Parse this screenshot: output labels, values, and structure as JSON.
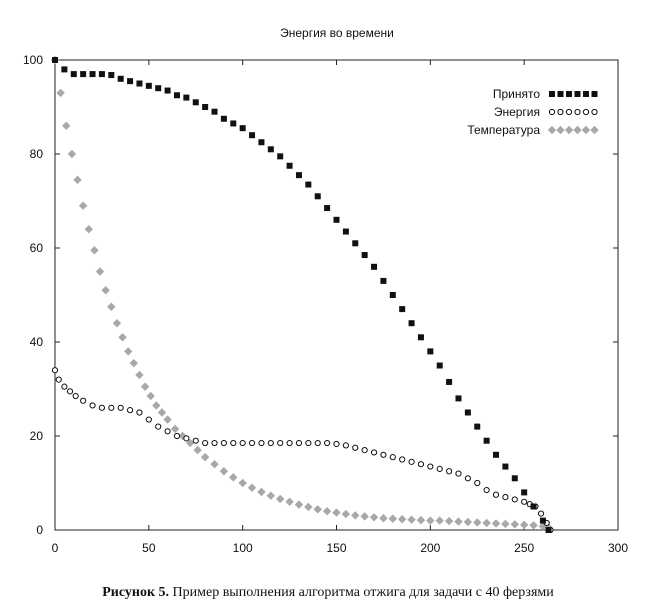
{
  "caption": {
    "label": "Рисунок 5.",
    "text": " Пример выполнения алгоритма отжига для задачи с 40 ферзями"
  },
  "chart_data": {
    "type": "scatter",
    "title": "Энергия во времени",
    "xlabel": "",
    "ylabel": "",
    "xlim": [
      0,
      300
    ],
    "ylim": [
      0,
      100
    ],
    "xticks": [
      0,
      50,
      100,
      150,
      200,
      250,
      300
    ],
    "yticks": [
      0,
      20,
      40,
      60,
      80,
      100
    ],
    "grid": false,
    "legend_position": "top-right",
    "series": [
      {
        "name": "Принято",
        "marker": "square",
        "color": "#111111",
        "x": [
          0,
          5,
          10,
          15,
          20,
          25,
          30,
          35,
          40,
          45,
          50,
          55,
          60,
          65,
          70,
          75,
          80,
          85,
          90,
          95,
          100,
          105,
          110,
          115,
          120,
          125,
          130,
          135,
          140,
          145,
          150,
          155,
          160,
          165,
          170,
          175,
          180,
          185,
          190,
          195,
          200,
          205,
          210,
          215,
          220,
          225,
          230,
          235,
          240,
          245,
          250,
          255,
          260,
          263
        ],
        "y": [
          100,
          98,
          97,
          97,
          97,
          97,
          96.8,
          96,
          95.5,
          95,
          94.5,
          94,
          93.5,
          92.5,
          92,
          91,
          90,
          89,
          87.5,
          86.5,
          85.5,
          84,
          82.5,
          81,
          79.5,
          77.5,
          75.5,
          73.5,
          71,
          68.5,
          66,
          63.5,
          61,
          58.5,
          56,
          53,
          50,
          47,
          44,
          41,
          38,
          35,
          31.5,
          28,
          25,
          22,
          19,
          16,
          13.5,
          11,
          8,
          5,
          2,
          0
        ]
      },
      {
        "name": "Энергия",
        "marker": "circle",
        "color": "#111111",
        "x": [
          0,
          2,
          5,
          8,
          11,
          15,
          20,
          25,
          30,
          35,
          40,
          45,
          50,
          55,
          60,
          65,
          70,
          75,
          80,
          85,
          90,
          95,
          100,
          105,
          110,
          115,
          120,
          125,
          130,
          135,
          140,
          145,
          150,
          155,
          160,
          165,
          170,
          175,
          180,
          185,
          190,
          195,
          200,
          205,
          210,
          215,
          220,
          225,
          230,
          235,
          240,
          245,
          250,
          253,
          256,
          259,
          262,
          264
        ],
        "y": [
          34,
          32,
          30.5,
          29.5,
          28.5,
          27.5,
          26.5,
          26,
          26,
          26,
          25.5,
          25,
          23.5,
          22,
          21,
          20,
          19.5,
          19,
          18.5,
          18.5,
          18.5,
          18.5,
          18.5,
          18.5,
          18.5,
          18.5,
          18.5,
          18.5,
          18.5,
          18.5,
          18.5,
          18.5,
          18.3,
          18,
          17.5,
          17,
          16.5,
          16,
          15.5,
          15,
          14.5,
          14,
          13.5,
          13,
          12.5,
          12,
          11,
          10,
          8.5,
          7.5,
          7,
          6.5,
          6,
          5.5,
          5,
          3.5,
          1.5,
          0
        ]
      },
      {
        "name": "Температура",
        "marker": "diamond",
        "color": "#a8a8a8",
        "x": [
          0,
          3,
          6,
          9,
          12,
          15,
          18,
          21,
          24,
          27,
          30,
          33,
          36,
          39,
          42,
          45,
          48,
          51,
          54,
          57,
          60,
          64,
          68,
          72,
          76,
          80,
          85,
          90,
          95,
          100,
          105,
          110,
          115,
          120,
          125,
          130,
          135,
          140,
          145,
          150,
          155,
          160,
          165,
          170,
          175,
          180,
          185,
          190,
          195,
          200,
          205,
          210,
          215,
          220,
          225,
          230,
          235,
          240,
          245,
          250,
          255,
          260,
          263
        ],
        "y": [
          100,
          93,
          86,
          80,
          74.5,
          69,
          64,
          59.5,
          55,
          51,
          47.5,
          44,
          41,
          38,
          35.5,
          33,
          30.5,
          28.5,
          26.5,
          25,
          23.5,
          21.5,
          20,
          18.5,
          17,
          15.5,
          14,
          12.5,
          11.2,
          10,
          9,
          8.1,
          7.3,
          6.6,
          6,
          5.4,
          4.9,
          4.4,
          4,
          3.7,
          3.4,
          3.1,
          2.9,
          2.7,
          2.5,
          2.4,
          2.3,
          2.2,
          2.1,
          2,
          2,
          1.9,
          1.8,
          1.7,
          1.6,
          1.5,
          1.4,
          1.3,
          1.2,
          1.1,
          1,
          0.8,
          0.5
        ]
      }
    ]
  }
}
